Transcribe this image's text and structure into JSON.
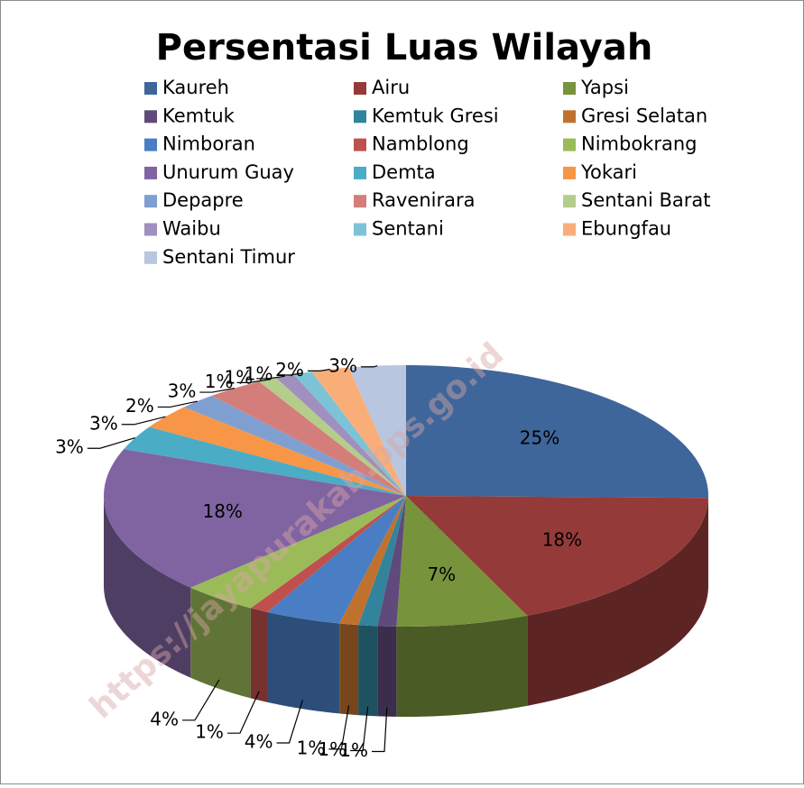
{
  "chart_data": {
    "type": "pie3d",
    "title": "Persentasi Luas Wilayah",
    "categories": [
      "Kaureh",
      "Airu",
      "Yapsi",
      "Kemtuk",
      "Kemtuk Gresi",
      "Gresi Selatan",
      "Nimboran",
      "Namblong",
      "Nimbokrang",
      "Unurum Guay",
      "Demta",
      "Yokari",
      "Depapre",
      "Ravenirara",
      "Sentani Barat",
      "Waibu",
      "Sentani",
      "Ebungfau",
      "Sentani Timur"
    ],
    "values": [
      25,
      18,
      7,
      1,
      1,
      1,
      4,
      1,
      4,
      18,
      3,
      3,
      2,
      3,
      1,
      1,
      1,
      2,
      3
    ],
    "value_labels": [
      "25%",
      "18%",
      "7%",
      "1%",
      "1%",
      "1%",
      "4%",
      "1%",
      "4%",
      "18%",
      "3%",
      "3%",
      "2%",
      "3%",
      "1%",
      "1%",
      "1%",
      "2%",
      "3%"
    ],
    "colors": [
      "#3f669a",
      "#943b3a",
      "#77933c",
      "#5f4a7b",
      "#31849b",
      "#c0712e",
      "#4a7ec4",
      "#c0504d",
      "#9bbb59",
      "#8064a2",
      "#4bacc6",
      "#f79646",
      "#7f9fd0",
      "#d47e7c",
      "#b4cd8a",
      "#a08fbf",
      "#7cc3d7",
      "#f9ae7a",
      "#b8c6e0"
    ],
    "legend": "top",
    "watermark": "https://jayapurakab.bps.go.id"
  }
}
